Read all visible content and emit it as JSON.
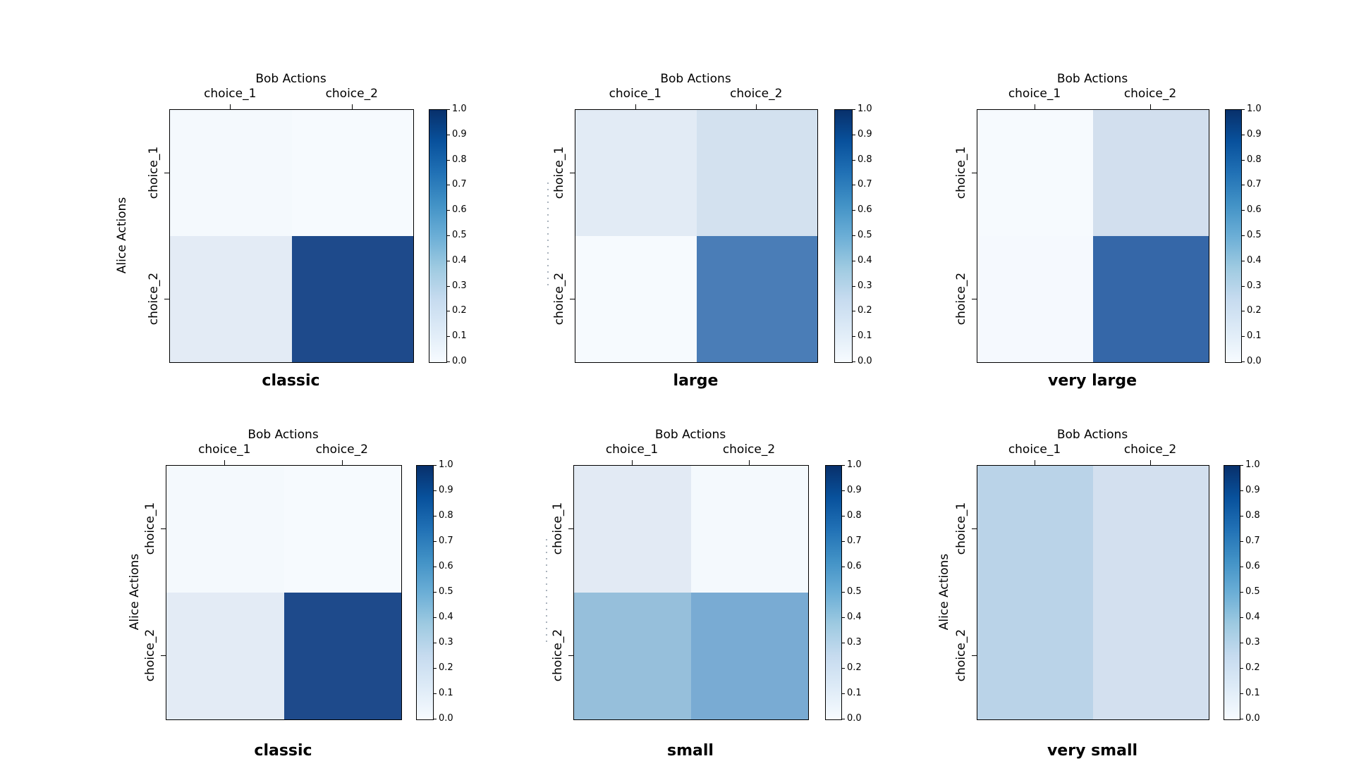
{
  "figure": {
    "background_color": "#ffffff",
    "colormap": "Blues",
    "colorbar_min_label": "0.0",
    "colorbar_max_label": "1.0",
    "colorbar_tick_labels": [
      "0.0",
      "0.1",
      "0.2",
      "0.3",
      "0.4",
      "0.5",
      "0.6",
      "0.7",
      "0.8",
      "0.9",
      "1.0"
    ]
  },
  "chart_data": [
    {
      "type": "heatmap",
      "title": "classic",
      "x_axis_title": "Bob Actions",
      "y_axis_title": "Alice Actions",
      "y_axis_title_visible": true,
      "columns": [
        "choice_1",
        "choice_2"
      ],
      "rows": [
        "choice_1",
        "choice_2"
      ],
      "values": [
        [
          0.02,
          0.01
        ],
        [
          0.1,
          0.87
        ]
      ],
      "cell_colors": [
        [
          "#f4f9fd",
          "#f6fafe"
        ],
        [
          "#e3ebf5",
          "#1e4a8b"
        ]
      ],
      "colorbar_range": [
        0.0,
        1.0
      ]
    },
    {
      "type": "heatmap",
      "title": "large",
      "x_axis_title": "Bob Actions",
      "y_axis_title": "Alice Actions",
      "y_axis_title_visible": false,
      "columns": [
        "choice_1",
        "choice_2"
      ],
      "rows": [
        "choice_1",
        "choice_2"
      ],
      "values": [
        [
          0.09,
          0.15
        ],
        [
          0.01,
          0.6
        ]
      ],
      "cell_colors": [
        [
          "#e2ebf5",
          "#d3e1ef"
        ],
        [
          "#f6fafe",
          "#4a7db7"
        ]
      ],
      "colorbar_range": [
        0.0,
        1.0
      ]
    },
    {
      "type": "heatmap",
      "title": "very large",
      "x_axis_title": "Bob Actions",
      "y_axis_title": "Alice Actions",
      "y_axis_title_visible": false,
      "columns": [
        "choice_1",
        "choice_2"
      ],
      "rows": [
        "choice_1",
        "choice_2"
      ],
      "values": [
        [
          0.02,
          0.15
        ],
        [
          0.02,
          0.7
        ]
      ],
      "cell_colors": [
        [
          "#f6fafe",
          "#d2dfee"
        ],
        [
          "#f5f9fe",
          "#3567a8"
        ]
      ],
      "colorbar_range": [
        0.0,
        1.0
      ]
    },
    {
      "type": "heatmap",
      "title": "classic",
      "x_axis_title": "Bob Actions",
      "y_axis_title": "Alice Actions",
      "y_axis_title_visible": true,
      "columns": [
        "choice_1",
        "choice_2"
      ],
      "rows": [
        "choice_1",
        "choice_2"
      ],
      "values": [
        [
          0.02,
          0.01
        ],
        [
          0.1,
          0.87
        ]
      ],
      "cell_colors": [
        [
          "#f4f9fd",
          "#f6fafe"
        ],
        [
          "#e3ebf5",
          "#1e4a8b"
        ]
      ],
      "colorbar_range": [
        0.0,
        1.0
      ]
    },
    {
      "type": "heatmap",
      "title": "small",
      "x_axis_title": "Bob Actions",
      "y_axis_title": "Alice Actions",
      "y_axis_title_visible": false,
      "columns": [
        "choice_1",
        "choice_2"
      ],
      "rows": [
        "choice_1",
        "choice_2"
      ],
      "values": [
        [
          0.09,
          0.02
        ],
        [
          0.37,
          0.47
        ]
      ],
      "cell_colors": [
        [
          "#e2eaf4",
          "#f4f9fd"
        ],
        [
          "#96bfdb",
          "#79abd3"
        ]
      ],
      "colorbar_range": [
        0.0,
        1.0
      ]
    },
    {
      "type": "heatmap",
      "title": "very small",
      "x_axis_title": "Bob Actions",
      "y_axis_title": "Alice Actions",
      "y_axis_title_visible": true,
      "columns": [
        "choice_1",
        "choice_2"
      ],
      "rows": [
        "choice_1",
        "choice_2"
      ],
      "values": [
        [
          0.24,
          0.15
        ],
        [
          0.24,
          0.15
        ]
      ],
      "cell_colors": [
        [
          "#bad3e8",
          "#d3e0ef"
        ],
        [
          "#bad3e8",
          "#d3e0ef"
        ]
      ],
      "colorbar_range": [
        0.0,
        1.0
      ]
    }
  ]
}
